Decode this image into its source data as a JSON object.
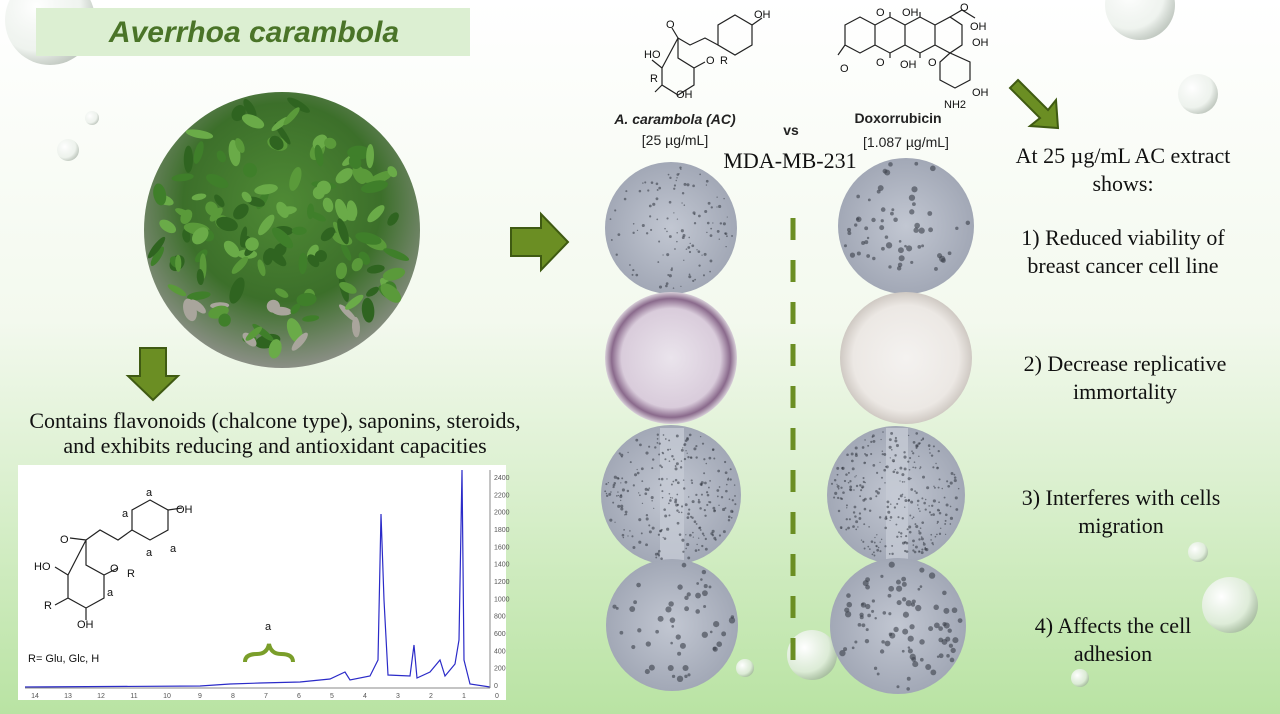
{
  "title": "Averrhoa carambola",
  "description": [
    "Contains flavonoids (chalcone type), saponins, steroids,",
    "and exhibits reducing and antioxidant capacities"
  ],
  "spectrum": {
    "structure_labels": [
      "a",
      "OH",
      "a",
      "O",
      "a",
      "a",
      "HO",
      "O",
      "R",
      "a",
      "R",
      "OH"
    ],
    "r_groups": "R= Glu, Glc, H",
    "bracket_label": "a",
    "x_ticks": [
      14,
      13,
      12,
      11,
      10,
      9,
      8,
      7,
      6,
      5,
      4,
      3,
      2,
      1,
      0
    ],
    "y_ticks": [
      2400,
      2200,
      2000,
      1800,
      1600,
      1400,
      1200,
      1000,
      800,
      600,
      400,
      200,
      0
    ]
  },
  "comparison": {
    "left": {
      "name": "A. carambola (AC)",
      "dose": "[25 µg/mL]",
      "structure_labels": [
        "OH",
        "O",
        "HO",
        "O",
        "R",
        "R",
        "OH"
      ]
    },
    "vs": "vs",
    "right": {
      "name": "Doxorrubicin",
      "dose": "[1.087 µg/mL]",
      "structure_labels": [
        "O",
        "OH",
        "O",
        "OH",
        "OH",
        "O",
        "O",
        "OH",
        "O",
        "NH2",
        "OH"
      ]
    },
    "cell_line": "MDA-MB-231"
  },
  "findings": {
    "intro": [
      "At 25 µg/mL AC extract",
      "shows:"
    ],
    "items": [
      [
        "1) Reduced viability of",
        "breast cancer cell line"
      ],
      [
        "2) Decrease replicative",
        "immortality"
      ],
      [
        "3) Interferes with cells",
        "migration"
      ],
      [
        "4) Affects the cell",
        "adhesion"
      ]
    ]
  }
}
